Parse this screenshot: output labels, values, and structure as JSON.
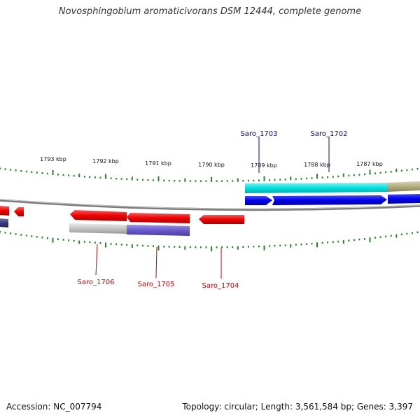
{
  "title": "Novosphingobium aromaticivorans DSM 12444, complete genome",
  "footer": {
    "accession": "Accession: NC_007794",
    "summary": "Topology: circular; Length: 3,561,584 bp; Genes: 3,397"
  },
  "ruler_labels": [
    "1793 kbp",
    "1792 kbp",
    "1791 kbp",
    "1790 kbp",
    "1789 kbp",
    "1788 kbp",
    "1787 kbp"
  ],
  "gene_labels": {
    "top": [
      "Saro_1703",
      "Saro_1702"
    ],
    "bottom": [
      "Saro_1706",
      "Saro_1705",
      "Saro_1704"
    ]
  },
  "colors": {
    "forward_gene": "#0000ee",
    "reverse_gene": "#ee0000",
    "forward_label": "#0000aa",
    "reverse_label": "#cc0000",
    "tick": "#228822",
    "cyan_feature": "#00e5e5",
    "olive_feature": "#b5ad80",
    "purple_feature": "#6a5acd",
    "grey_feature": "#bbbbbb",
    "backbone": "#888888"
  }
}
